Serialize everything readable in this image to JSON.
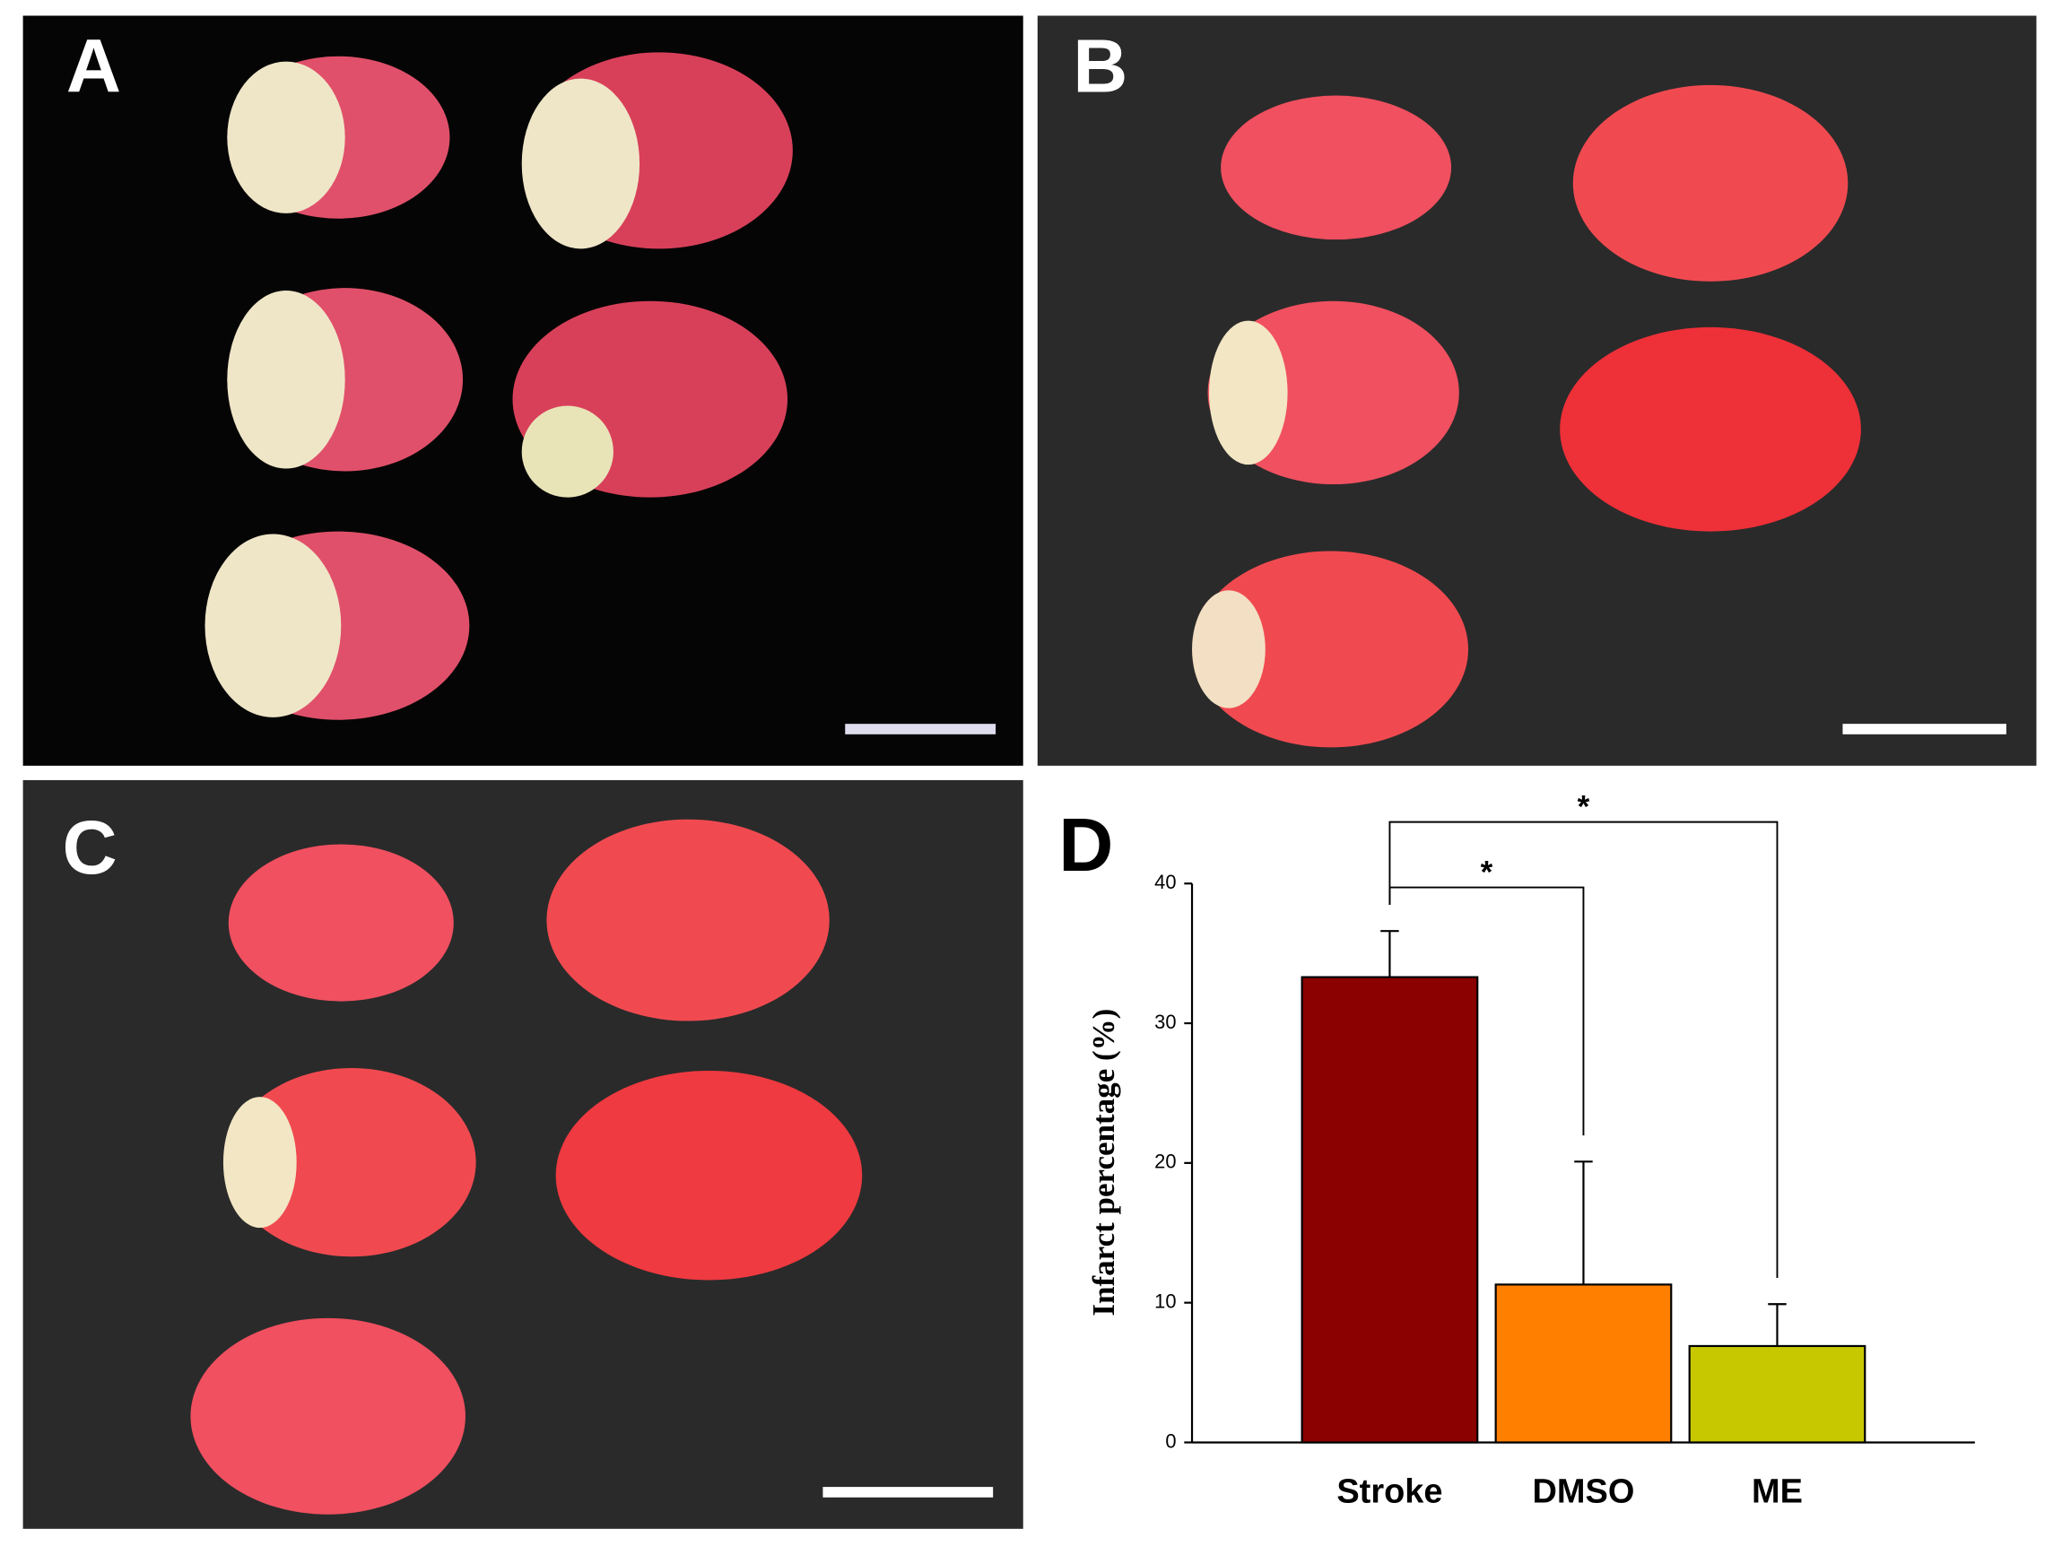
{
  "panels": [
    {
      "label": "A"
    },
    {
      "label": "B"
    },
    {
      "label": "C"
    }
  ],
  "chart_data": {
    "type": "bar",
    "panel_label": "D",
    "ylabel": "Infarct percentage (%)",
    "categories": [
      "Stroke",
      "DMSO",
      "ME"
    ],
    "values": [
      33.3,
      11.3,
      6.9
    ],
    "errors": [
      3.3,
      8.8,
      3.0
    ],
    "colors": [
      "#8b0000",
      "#ff8000",
      "#c8c800"
    ],
    "ylim": [
      0,
      40
    ],
    "yticks": [
      0,
      10,
      20,
      30,
      40
    ],
    "grid": false,
    "significance": [
      {
        "from": 0,
        "to": 1,
        "label": "*"
      },
      {
        "from": 0,
        "to": 2,
        "label": "*"
      }
    ]
  }
}
